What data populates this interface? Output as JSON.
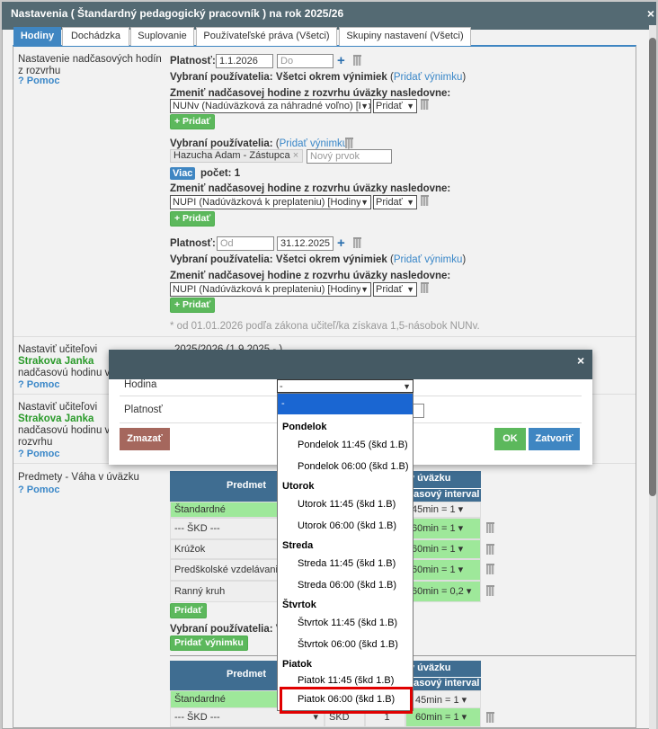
{
  "window": {
    "title": "Nastavenia ( Štandardný pedagogický pracovník ) na rok 2025/26",
    "close": "×"
  },
  "tabs": [
    "Hodiny",
    "Dochádzka",
    "Suplovanie",
    "Používateľské práva (Všetci)",
    "Skupiny nastavení (Všetci)"
  ],
  "section1": {
    "title": "Nastavenie nadčasových hodín z rozvrhu",
    "help": "? Pomoc",
    "platnost_label": "Platnosť:",
    "block1": {
      "from": "1.1.2026",
      "to_placeholder": "Do",
      "users_label": "Vybraní používatelia:",
      "users_value": "Všetci okrem výnimiek",
      "add_exception": "Pridať výnimku",
      "change_label": "Zmeniť nadčasovej hodine z rozvrhu úväzky nasledovne:",
      "type_select": "NUNv (Nadúväzková za náhradné voľno) [Ho",
      "action_select": "Pridať",
      "add_button": "+ Pridať"
    },
    "block2": {
      "users_label": "Vybraní používatelia:",
      "add_exception": "Pridať výnimku",
      "tag": "Hazucha Adam - Zástupca",
      "new_item_placeholder": "Nový prvok",
      "more_button": "Viac",
      "count": "počet: 1",
      "change_label": "Zmeniť nadčasovej hodine z rozvrhu úväzky nasledovne:",
      "type_select": "NUPI (Nadúväzková k preplateniu) [Hodiny",
      "action_select": "Pridať",
      "add_button": "+ Pridať"
    },
    "block3": {
      "from_placeholder": "Od",
      "to": "31.12.2025",
      "users_label": "Vybraní používatelia:",
      "users_value": "Všetci okrem výnimiek",
      "add_exception": "Pridať výnimku",
      "change_label": "Zmeniť nadčasovej hodine z rozvrhu úväzky nasledovne:",
      "type_select": "NUPI (Nadúväzková k preplateniu) [Hodiny",
      "action_select": "Pridať",
      "add_button": "+ Pridať"
    },
    "note": "* od 01.01.2026 podľa zákona učiteľ/ka získava 1,5-násobok NUNv."
  },
  "section2": {
    "line1": "Nastaviť učiteľovi",
    "teacher": "Strakova Janka",
    "line3": "nadčasovú hodinu v",
    "help": "? Pomoc",
    "right": "2025/2026 (1.9.2025 - )"
  },
  "section3": {
    "line1": "Nastaviť učiteľovi",
    "teacher": "Strakova Janka",
    "line3": "nadčasovú hodinu v",
    "line4": "rozvrhu",
    "help": "? Pomoc"
  },
  "section4": {
    "title": "Predmety - Váha v úväzku",
    "help": "? Pomoc",
    "table1": {
      "col_predmet": "Predmet",
      "col_vaha": "v úväzku",
      "col_interval": "časový interval",
      "rows": [
        {
          "name": "Štandardné",
          "interval": "45min = 1"
        },
        {
          "name": "--- ŠKD ---",
          "interval": "60min = 1"
        },
        {
          "name": "Krúžok",
          "interval": "60min = 1"
        },
        {
          "name": "Predškolské vzdelávanie",
          "interval": "60min = 1"
        },
        {
          "name": "Ranný kruh",
          "interval": "60min = 0,2"
        }
      ]
    },
    "add_button": "Pridať",
    "users_label": "Vybraní používatelia: V",
    "add_exception_button": "Pridať výnimku",
    "table2": {
      "col_predmet": "Predmet",
      "col_vaha": "v úväzku",
      "col_interval": "časový interval",
      "rows": [
        {
          "name": "Štandardné",
          "interval": "45min = 1"
        },
        {
          "name": "--- ŠKD ---",
          "abbr": "ŠKD",
          "count": "1",
          "interval": "60min = 1"
        }
      ]
    }
  },
  "modal": {
    "close": "×",
    "hodina_label": "Hodina",
    "hodina_value": "-",
    "platnost_label": "Platnosť",
    "delete": "Zmazať",
    "ok": "OK",
    "close_button": "Zatvoriť"
  },
  "dropdown": {
    "options": [
      {
        "kind": "item",
        "label": "-",
        "selected": true
      },
      {
        "kind": "group",
        "label": "Pondelok"
      },
      {
        "kind": "item",
        "label": "Pondelok 11:45 (škd 1.B)"
      },
      {
        "kind": "item",
        "label": "Pondelok 06:00 (škd 1.B)"
      },
      {
        "kind": "group",
        "label": "Utorok"
      },
      {
        "kind": "item",
        "label": "Utorok 11:45 (škd 1.B)"
      },
      {
        "kind": "item",
        "label": "Utorok 06:00 (škd 1.B)"
      },
      {
        "kind": "group",
        "label": "Streda"
      },
      {
        "kind": "item",
        "label": "Streda 11:45 (škd 1.B)"
      },
      {
        "kind": "item",
        "label": "Streda 06:00 (škd 1.B)"
      },
      {
        "kind": "group",
        "label": "Štvrtok"
      },
      {
        "kind": "item",
        "label": "Štvrtok 11:45 (škd 1.B)"
      },
      {
        "kind": "item",
        "label": "Štvrtok 06:00 (škd 1.B)"
      },
      {
        "kind": "group",
        "label": "Piatok"
      },
      {
        "kind": "item",
        "label": "Piatok 11:45 (škd 1.B)"
      },
      {
        "kind": "item",
        "label": "Piatok 06:00 (škd 1.B)",
        "highlighted": true
      }
    ]
  },
  "colors": {
    "accent": "#3f86c2",
    "titlebar": "#546a73",
    "modal_header": "#455a64",
    "selected_option": "#1a66d2",
    "highlight_box": "#e00000",
    "success": "#5cb85c",
    "danger": "#a5675d",
    "table_header": "#3f6d91"
  }
}
